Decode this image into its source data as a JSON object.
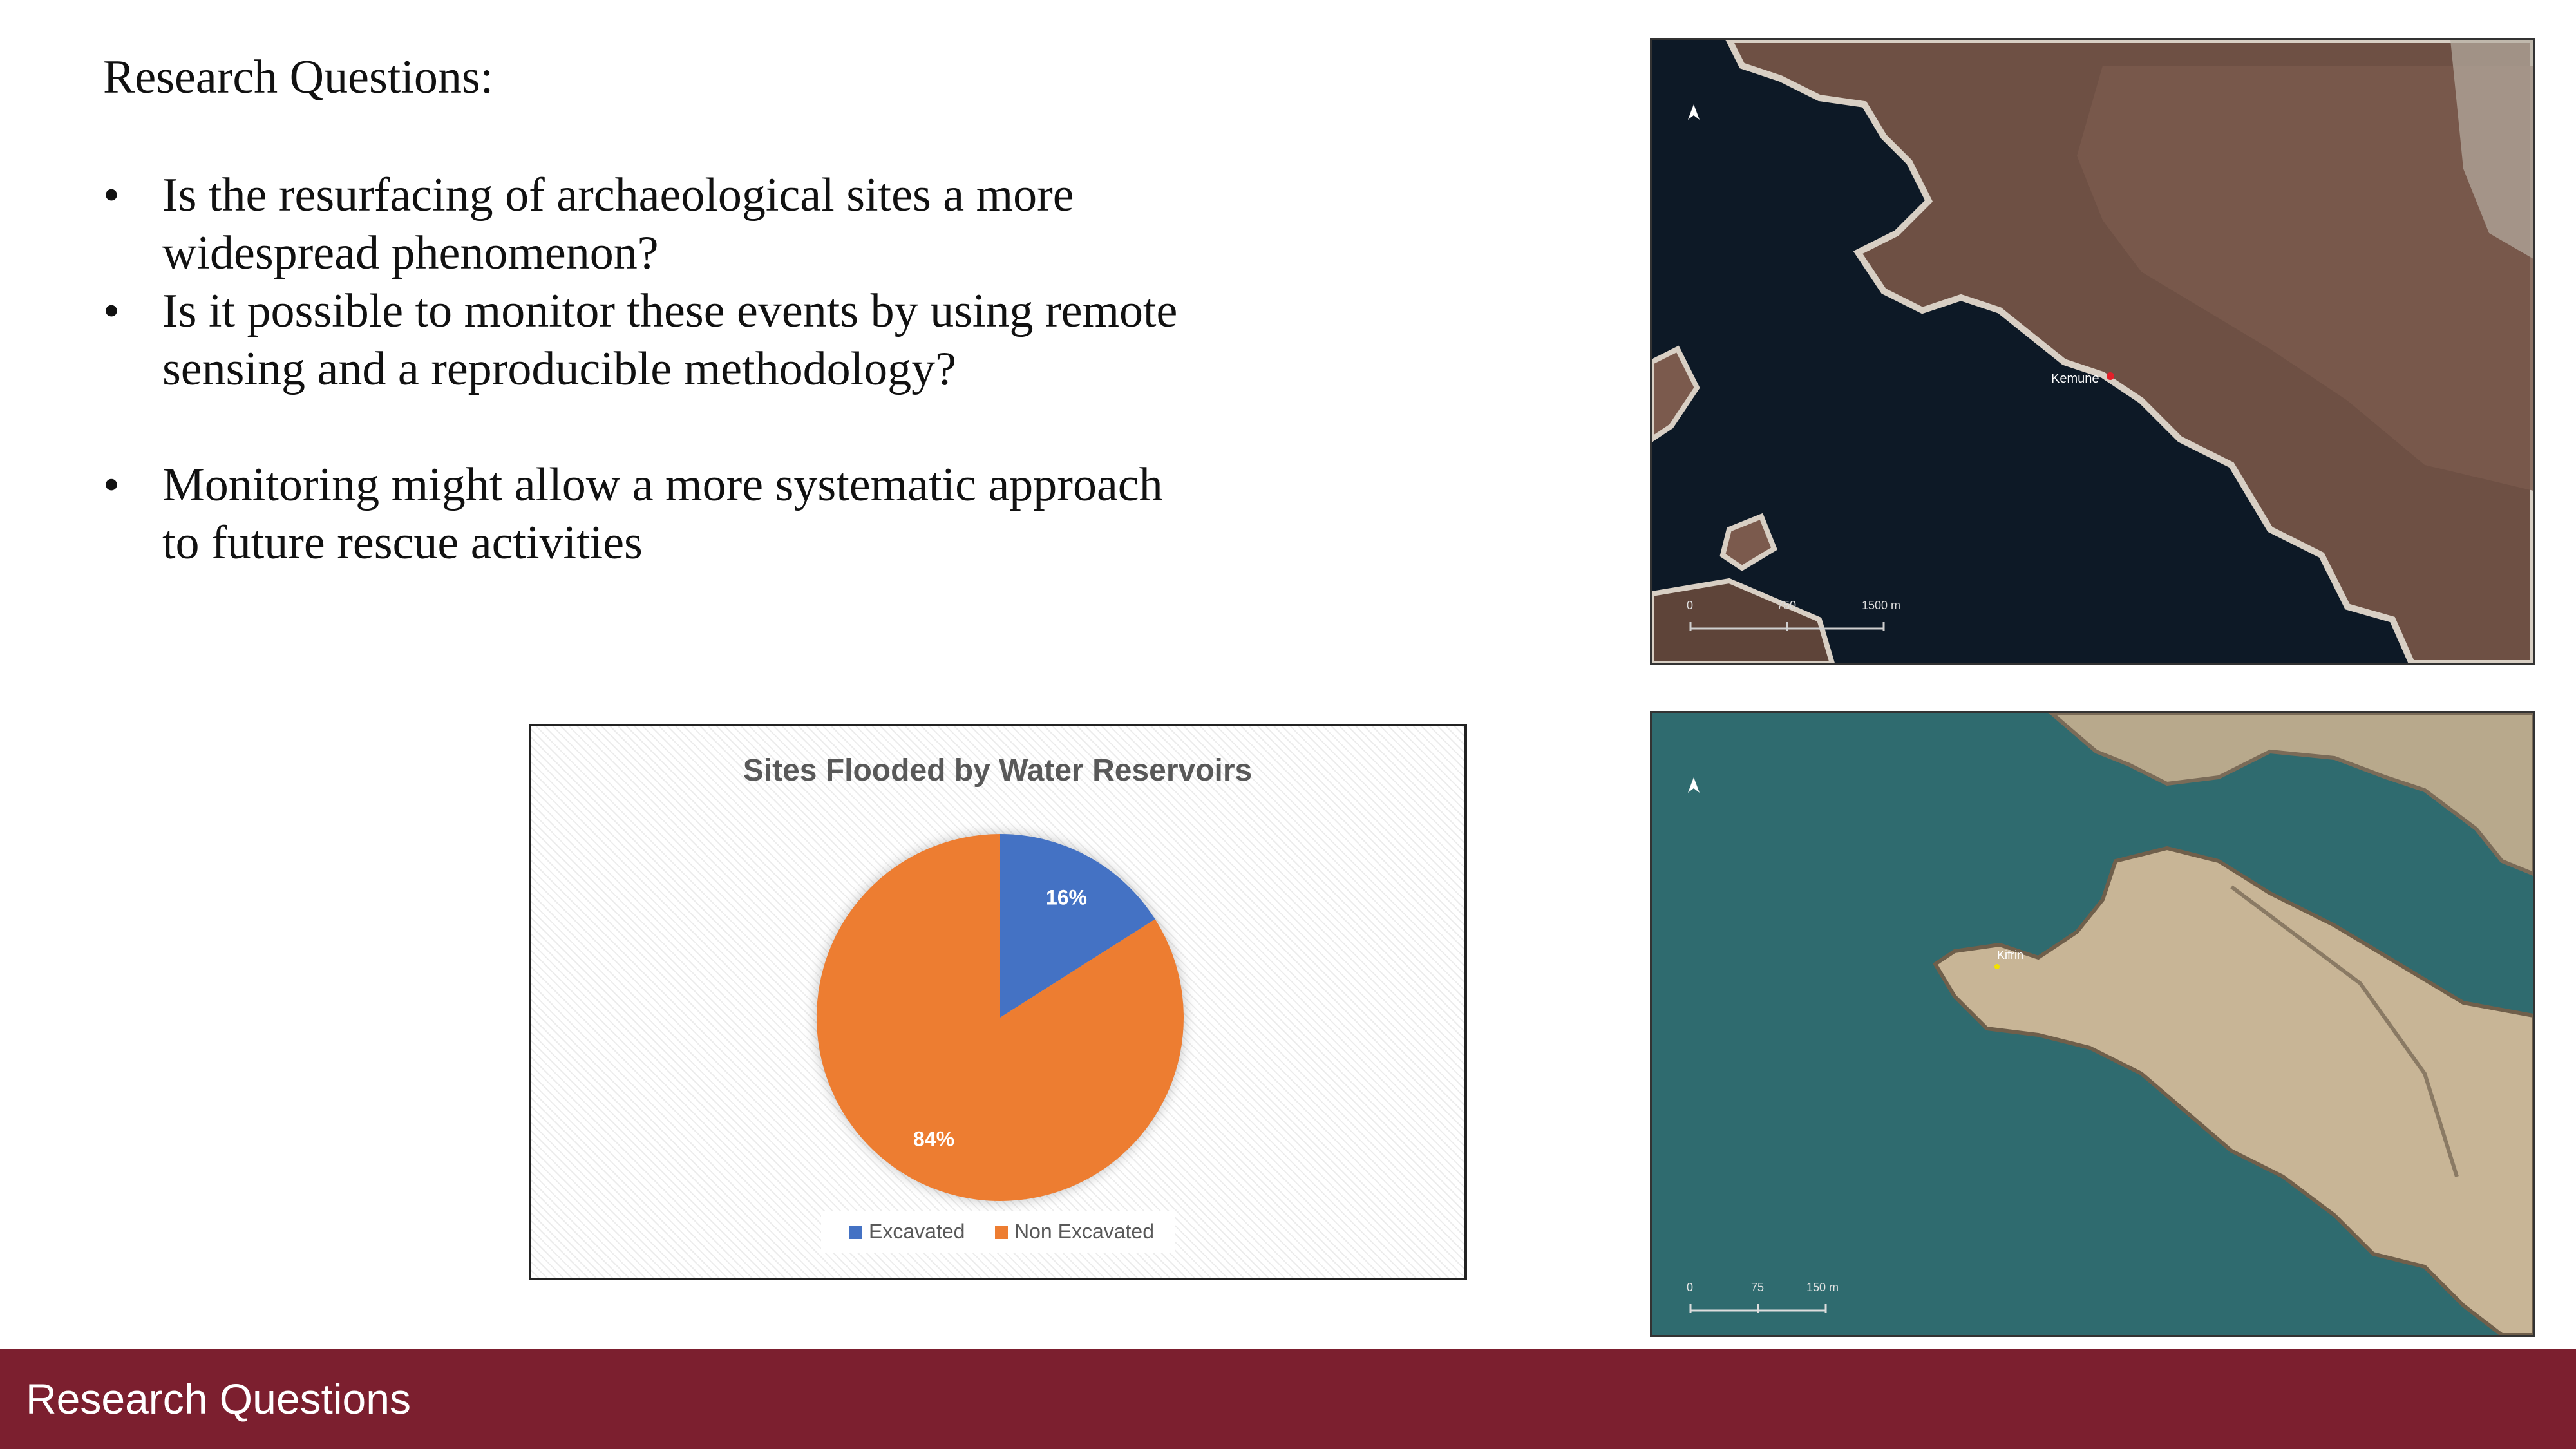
{
  "heading": "Research Questions:",
  "bullets": [
    {
      "marker": "•",
      "text": "Is the resurfacing of archaeological sites a more widespread phenomenon?"
    },
    {
      "marker": "•",
      "text": "Is it possible to monitor these events by using remote sensing and a reproducible methodology?"
    },
    {
      "marker": "•",
      "text": "Monitoring might allow a more systematic approach to future rescue activities"
    }
  ],
  "chart_data": {
    "type": "pie",
    "title": "Sites Flooded by Water Reservoirs",
    "categories": [
      "Excavated",
      "Non Excavated"
    ],
    "values": [
      16,
      84
    ],
    "data_labels": [
      "16%",
      "84%"
    ],
    "colors": [
      "#4472c4",
      "#ed7d31"
    ],
    "legend_position": "bottom"
  },
  "map1": {
    "site_label": "Kemune",
    "north_icon": "north-arrow-icon",
    "scale": [
      "0",
      "750",
      "1500 m"
    ]
  },
  "map2": {
    "site_label": "Kifrin",
    "north_icon": "north-arrow-icon",
    "scale": [
      "0",
      "75",
      "150 m"
    ]
  },
  "footer": {
    "title": "Research Questions"
  }
}
